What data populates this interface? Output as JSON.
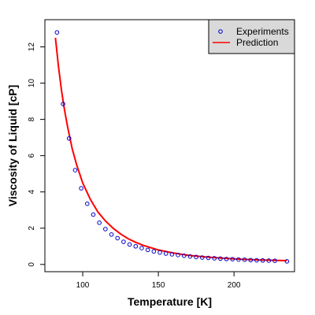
{
  "chart_data": {
    "type": "scatter",
    "xlabel": "Temperature [K]",
    "ylabel": "Viscosity of Liquid [cP]",
    "xlim": [
      75,
      240
    ],
    "ylim": [
      -0.4,
      13.5
    ],
    "x_ticks": [
      100,
      150,
      200
    ],
    "y_ticks": [
      0,
      2,
      4,
      6,
      8,
      10,
      12
    ],
    "grid": false,
    "legend_position": "top-right",
    "series": [
      {
        "name": "Experiments",
        "kind": "points",
        "marker": "open-circle",
        "color": "#0000cc",
        "x": [
          83,
          87,
          91,
          95,
          99,
          103,
          107,
          111,
          115,
          119,
          123,
          127,
          131,
          135,
          139,
          143,
          147,
          151,
          155,
          159,
          163,
          167,
          171,
          175,
          179,
          183,
          187,
          191,
          195,
          199,
          203,
          207,
          211,
          215,
          219,
          223,
          227,
          235
        ],
        "y": [
          12.8,
          8.85,
          6.95,
          5.2,
          4.2,
          3.35,
          2.75,
          2.3,
          1.95,
          1.65,
          1.45,
          1.25,
          1.1,
          1.0,
          0.9,
          0.8,
          0.72,
          0.66,
          0.6,
          0.56,
          0.52,
          0.48,
          0.44,
          0.41,
          0.38,
          0.36,
          0.34,
          0.32,
          0.3,
          0.29,
          0.27,
          0.26,
          0.24,
          0.23,
          0.22,
          0.21,
          0.2,
          0.17
        ]
      },
      {
        "name": "Prediction",
        "kind": "line",
        "color": "#ff0000",
        "x": [
          82,
          84,
          86,
          88,
          90,
          93,
          96,
          100,
          105,
          110,
          115,
          120,
          125,
          130,
          135,
          140,
          150,
          160,
          170,
          180,
          190,
          200,
          210,
          220,
          230,
          235
        ],
        "y": [
          12.5,
          10.9,
          9.6,
          8.5,
          7.6,
          6.4,
          5.5,
          4.5,
          3.6,
          2.9,
          2.4,
          2.0,
          1.68,
          1.42,
          1.22,
          1.05,
          0.8,
          0.63,
          0.5,
          0.42,
          0.36,
          0.31,
          0.27,
          0.24,
          0.22,
          0.21
        ]
      }
    ]
  }
}
